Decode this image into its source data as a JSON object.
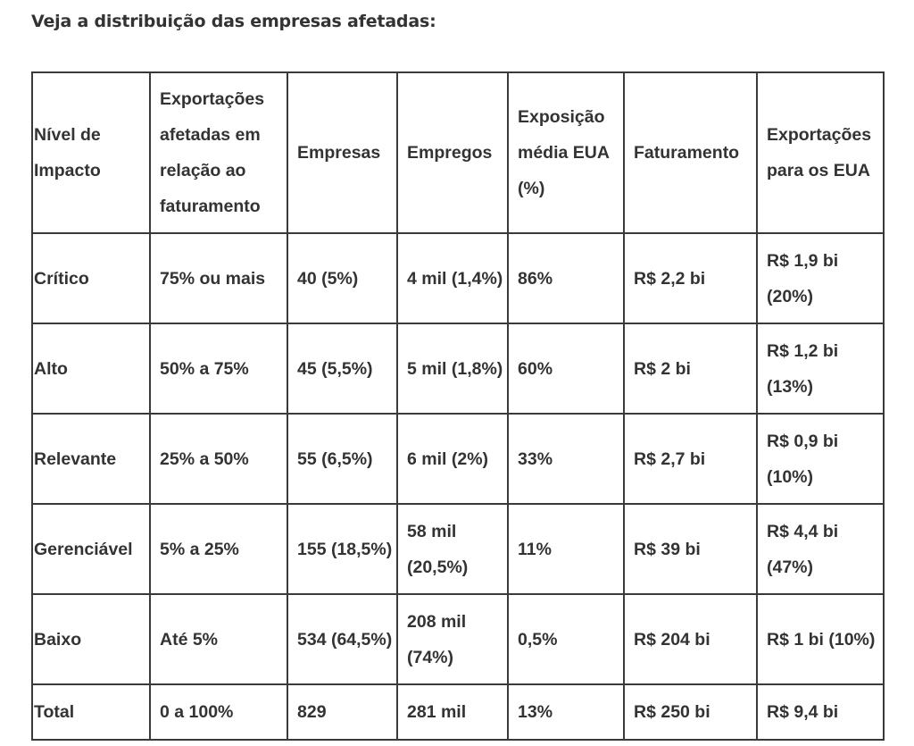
{
  "heading": "Veja a distribuição das empresas afetadas:",
  "table": {
    "headers": [
      "Nível de Impacto",
      "Exportações afetadas em relação ao faturamento",
      "Empresas",
      "Empregos",
      "Exposição média EUA (%)",
      "Faturamento",
      "Exportações para os EUA"
    ],
    "rows": [
      [
        "Crítico",
        "75% ou mais",
        "40 (5%)",
        "4 mil (1,4%)",
        "86%",
        "R$ 2,2 bi",
        "R$ 1,9 bi (20%)"
      ],
      [
        "Alto",
        "50% a 75%",
        "45 (5,5%)",
        "5 mil (1,8%)",
        "60%",
        "R$ 2 bi",
        "R$ 1,2 bi (13%)"
      ],
      [
        "Relevante",
        "25% a 50%",
        "55 (6,5%)",
        "6 mil (2%)",
        "33%",
        "R$ 2,7 bi",
        "R$ 0,9 bi (10%)"
      ],
      [
        "Gerenciável",
        "5% a 25%",
        "155 (18,5%)",
        "58 mil (20,5%)",
        "11%",
        "R$ 39 bi",
        "R$ 4,4 bi (47%)"
      ],
      [
        "Baixo",
        "Até 5%",
        "534 (64,5%)",
        "208 mil (74%)",
        "0,5%",
        "R$ 204 bi",
        "R$ 1 bi (10%)"
      ],
      [
        "Total",
        "0 a 100%",
        "829",
        "281 mil",
        "13%",
        "R$ 250 bi",
        "R$ 9,4 bi"
      ]
    ]
  }
}
